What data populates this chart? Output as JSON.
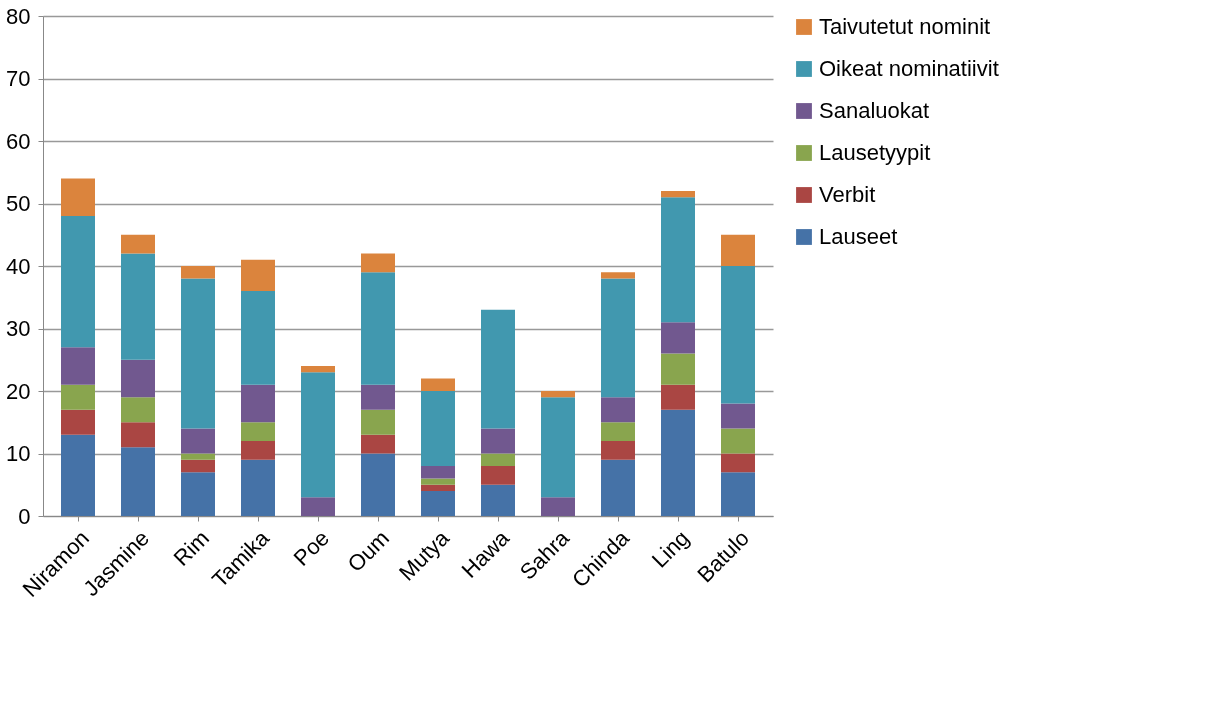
{
  "chart_data": {
    "type": "bar",
    "stacked": true,
    "categories": [
      "Niramon",
      "Jasmine",
      "Rim",
      "Tamika",
      "Poe",
      "Oum",
      "Mutya",
      "Hawa",
      "Sahra",
      "Chinda",
      "Ling",
      "Batulo"
    ],
    "series": [
      {
        "name": "Lauseet",
        "color": "#4572a7",
        "values": [
          13,
          11,
          7,
          9,
          0,
          10,
          4,
          5,
          0,
          9,
          17,
          7
        ]
      },
      {
        "name": "Verbit",
        "color": "#aa4643",
        "values": [
          4,
          4,
          2,
          3,
          0,
          3,
          1,
          3,
          0,
          3,
          4,
          3
        ]
      },
      {
        "name": "Lausetyypit",
        "color": "#89a54e",
        "values": [
          4,
          4,
          1,
          3,
          0,
          4,
          1,
          2,
          0,
          3,
          5,
          4
        ]
      },
      {
        "name": "Sanaluokat",
        "color": "#71588f",
        "values": [
          6,
          6,
          4,
          6,
          3,
          4,
          2,
          4,
          3,
          4,
          5,
          4
        ]
      },
      {
        "name": "Oikeat nominatiivit",
        "color": "#4198af",
        "values": [
          21,
          17,
          24,
          15,
          20,
          18,
          12,
          19,
          16,
          19,
          20,
          22
        ]
      },
      {
        "name": "Taivutetut nominit",
        "color": "#db843d",
        "values": [
          6,
          3,
          2,
          5,
          1,
          3,
          2,
          0,
          1,
          1,
          1,
          5
        ]
      }
    ],
    "ylim": [
      0,
      80
    ],
    "yticks": [
      0,
      10,
      20,
      30,
      40,
      50,
      60,
      70,
      80
    ],
    "grid": "y",
    "legend": "right"
  }
}
